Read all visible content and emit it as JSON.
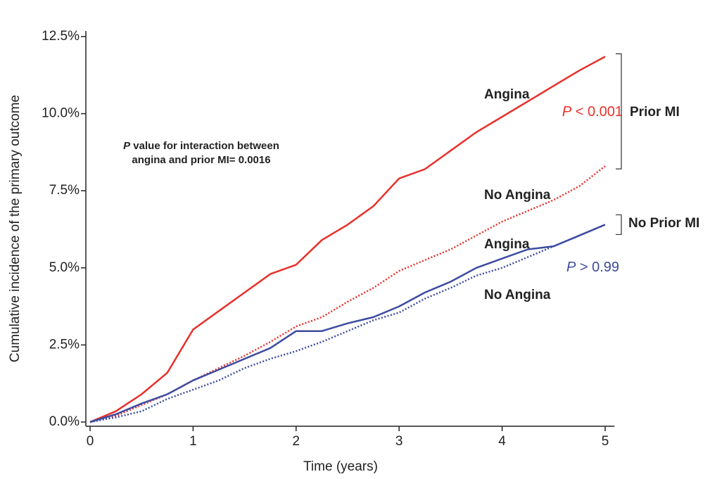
{
  "chart_data": {
    "type": "line",
    "xlabel": "Time (years)",
    "ylabel": "Cumulative incidence of the primary outcome",
    "x": [
      0,
      0.25,
      0.5,
      0.75,
      1,
      1.25,
      1.5,
      1.75,
      2,
      2.25,
      2.5,
      2.75,
      3,
      3.25,
      3.5,
      3.75,
      4,
      4.25,
      4.5,
      4.75,
      5
    ],
    "xlim": [
      0,
      5.05
    ],
    "xticks": [
      0,
      1,
      2,
      3,
      4,
      5
    ],
    "ylim": [
      0,
      12.5
    ],
    "yticks": [
      {
        "value": 0,
        "label": "0.0%"
      },
      {
        "value": 2.5,
        "label": "2.5%"
      },
      {
        "value": 5,
        "label": "5.0%"
      },
      {
        "value": 7.5,
        "label": "7.5%"
      },
      {
        "value": 10,
        "label": "10.0%"
      },
      {
        "value": 12.5,
        "label": "12.5%"
      }
    ],
    "series": [
      {
        "name": "Angina",
        "color": "#e8302a",
        "style": "solid",
        "values": [
          0,
          0.35,
          0.9,
          1.6,
          3.0,
          3.6,
          4.2,
          4.8,
          5.1,
          5.9,
          6.4,
          7.0,
          7.9,
          8.2,
          8.8,
          9.4,
          9.9,
          10.4,
          10.9,
          11.4,
          11.85
        ]
      },
      {
        "name": "No Angina",
        "color": "#e8302a",
        "style": "dotted",
        "values": [
          0,
          0.2,
          0.55,
          0.9,
          1.35,
          1.75,
          2.15,
          2.6,
          3.1,
          3.4,
          3.9,
          4.35,
          4.9,
          5.25,
          5.6,
          6.05,
          6.5,
          6.85,
          7.2,
          7.65,
          8.3
        ]
      },
      {
        "name": "Angina",
        "color": "#3c4ba0",
        "style": "solid",
        "values": [
          0,
          0.25,
          0.6,
          0.9,
          1.35,
          1.7,
          2.05,
          2.4,
          2.95,
          2.95,
          3.2,
          3.4,
          3.75,
          4.2,
          4.55,
          5.0,
          5.3,
          5.6,
          5.7,
          6.05,
          6.4
        ]
      },
      {
        "name": "No Angina",
        "color": "#3c4ba0",
        "style": "dotted",
        "values": [
          0,
          0.15,
          0.35,
          0.75,
          1.05,
          1.35,
          1.75,
          2.05,
          2.3,
          2.6,
          2.95,
          3.3,
          3.55,
          4.0,
          4.35,
          4.75,
          5.0,
          5.35,
          5.7,
          6.05,
          6.4
        ]
      }
    ],
    "groups": [
      {
        "label": "Prior MI",
        "color": "#e8302a",
        "p_italic": "P",
        "p_text": " < 0.001"
      },
      {
        "label": "No Prior MI",
        "color": "#3c4ba0",
        "p_italic": "P",
        "p_text": " > 0.99"
      }
    ],
    "note": {
      "italic": "P",
      "lines": [
        " value for interaction between",
        "angina and prior MI= 0.0016"
      ]
    }
  }
}
